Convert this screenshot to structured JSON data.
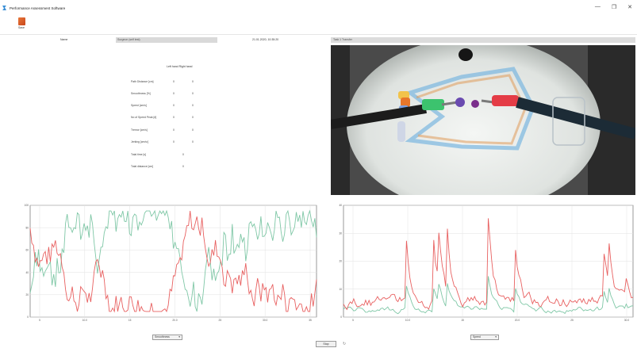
{
  "window": {
    "title": "Performance Assessment Software",
    "controls": {
      "minimize": "—",
      "maximize": "❐",
      "close": "✕"
    }
  },
  "toolbar": {
    "save_label": "Save"
  },
  "info": {
    "name_label": "Name",
    "name_value": "Surgeon (self test)",
    "datetime": "21.01.2020, 10:35:20",
    "video_label": "Task 1 Transfer"
  },
  "metrics": {
    "header": "Left hand   Right hand",
    "rows": [
      {
        "label": "Path Distance [cm]",
        "left": "0",
        "right": "0"
      },
      {
        "label": "Smoothness [%]",
        "left": "0",
        "right": "0"
      },
      {
        "label": "Speed [cm/s]",
        "left": "0",
        "right": "0"
      },
      {
        "label": "No of Speed Peak [#]",
        "left": "0",
        "right": "0"
      },
      {
        "label": "Tremor [cm/s]",
        "left": "0",
        "right": "0"
      },
      {
        "label": "Jerking [cm/s²]",
        "left": "0",
        "right": "0"
      }
    ],
    "single_rows": [
      {
        "label": "Total time [s]",
        "value": "0"
      },
      {
        "label": "Total distance [cm]",
        "value": "0"
      }
    ]
  },
  "colors": {
    "series_a": "#e86060",
    "series_b": "#7fc7a6",
    "grid": "#e2e2e2",
    "axis": "#555555"
  },
  "chart_left": {
    "dropdown": "Smoothness",
    "y_ticks": [
      "100",
      "80",
      "60",
      "40",
      "20",
      "0"
    ],
    "x_ticks": [
      "5",
      "10.0",
      "15",
      "20.0",
      "25",
      "30.0",
      "35"
    ]
  },
  "chart_right": {
    "dropdown": "Speed",
    "y_ticks": [
      "40",
      "30",
      "20",
      "10",
      "0"
    ],
    "x_ticks": [
      "5",
      "10.0",
      "15",
      "20.0",
      "25",
      "30.0"
    ]
  },
  "footer": {
    "stop_label": "Stop",
    "status_icon": "↻"
  }
}
